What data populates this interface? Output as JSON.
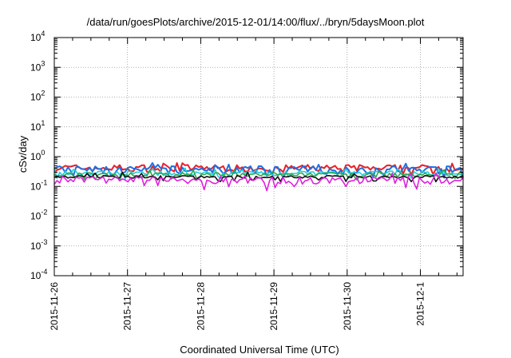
{
  "chart_data": {
    "type": "line",
    "title": "/data/run/goesPlots/archive/2015-12-01/14:00/flux/../bryn/5daysMoon.plot",
    "xlabel": "Coordinated Universal Time (UTC)",
    "ylabel": "cSv/day",
    "yscale": "log",
    "ylim": [
      0.0001,
      10000
    ],
    "xlim": [
      "2015-11-26",
      "2015-12-01 14:00"
    ],
    "grid": true,
    "legend": "none",
    "x_ticks": [
      "2015-11-26",
      "2015-11-27",
      "2015-11-28",
      "2015-11-29",
      "2015-11-30",
      "2015-12-1"
    ],
    "y_ticks": [
      {
        "value": 0.0001,
        "base": "10",
        "exp": "-4"
      },
      {
        "value": 0.001,
        "base": "10",
        "exp": "-3"
      },
      {
        "value": 0.01,
        "base": "10",
        "exp": "-2"
      },
      {
        "value": 0.1,
        "base": "10",
        "exp": "-1"
      },
      {
        "value": 1,
        "base": "10",
        "exp": "0"
      },
      {
        "value": 10,
        "base": "10",
        "exp": "1"
      },
      {
        "value": 100,
        "base": "10",
        "exp": "2"
      },
      {
        "value": 1000,
        "base": "10",
        "exp": "3"
      },
      {
        "value": 10000,
        "base": "10",
        "exp": "4"
      }
    ],
    "series": [
      {
        "color": "#e8202a",
        "level": 0.42,
        "spread": 0.55
      },
      {
        "color": "#1f6fe0",
        "level": 0.37,
        "spread": 0.6
      },
      {
        "color": "#20d0d8",
        "level": 0.28,
        "spread": 0.35
      },
      {
        "color": "#2fa84a",
        "level": 0.25,
        "spread": 0.3
      },
      {
        "color": "#111111",
        "level": 0.21,
        "spread": 0.2
      },
      {
        "color": "#e020e0",
        "level": 0.17,
        "spread": 0.55
      }
    ]
  }
}
